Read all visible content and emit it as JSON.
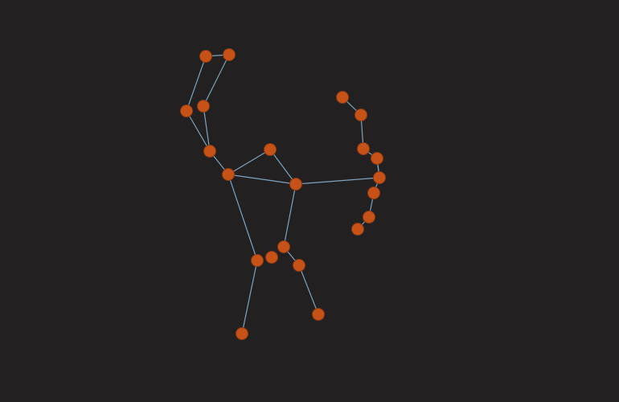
{
  "graph": {
    "background": "#222021",
    "node_color": "#c65218",
    "node_stroke": "#8a3a12",
    "edge_color": "#7fa3bf",
    "nodes": [
      {
        "id": "n1"
      },
      {
        "id": "n2"
      },
      {
        "id": "n3"
      },
      {
        "id": "n4"
      },
      {
        "id": "n5"
      },
      {
        "id": "n6"
      },
      {
        "id": "n7"
      },
      {
        "id": "n8"
      },
      {
        "id": "n9"
      },
      {
        "id": "n10"
      },
      {
        "id": "n11"
      },
      {
        "id": "n12"
      },
      {
        "id": "n13"
      },
      {
        "id": "n14"
      },
      {
        "id": "n15"
      },
      {
        "id": "n16"
      },
      {
        "id": "n17"
      },
      {
        "id": "n18"
      },
      {
        "id": "n19"
      },
      {
        "id": "n20"
      },
      {
        "id": "n21"
      },
      {
        "id": "n22"
      },
      {
        "id": "n23"
      },
      {
        "id": "n24"
      }
    ],
    "edges": [
      [
        "n1",
        "n2"
      ],
      [
        "n1",
        "n3"
      ],
      [
        "n2",
        "n4"
      ],
      [
        "n3",
        "n5"
      ],
      [
        "n4",
        "n5"
      ],
      [
        "n5",
        "n6"
      ],
      [
        "n6",
        "n7"
      ],
      [
        "n7",
        "n8"
      ],
      [
        "n6",
        "n8"
      ],
      [
        "n8",
        "n9"
      ],
      [
        "n8",
        "n10"
      ],
      [
        "n6",
        "n11"
      ],
      [
        "n11",
        "n12"
      ],
      [
        "n10",
        "n14"
      ],
      [
        "n14",
        "n15"
      ],
      [
        "n16",
        "n17"
      ],
      [
        "n17",
        "n18"
      ],
      [
        "n18",
        "n19"
      ],
      [
        "n19",
        "n20"
      ],
      [
        "n20",
        "n21"
      ],
      [
        "n21",
        "n22"
      ],
      [
        "n22",
        "n23"
      ],
      [
        "n23",
        "n24"
      ],
      [
        "n9",
        "n20"
      ]
    ]
  }
}
